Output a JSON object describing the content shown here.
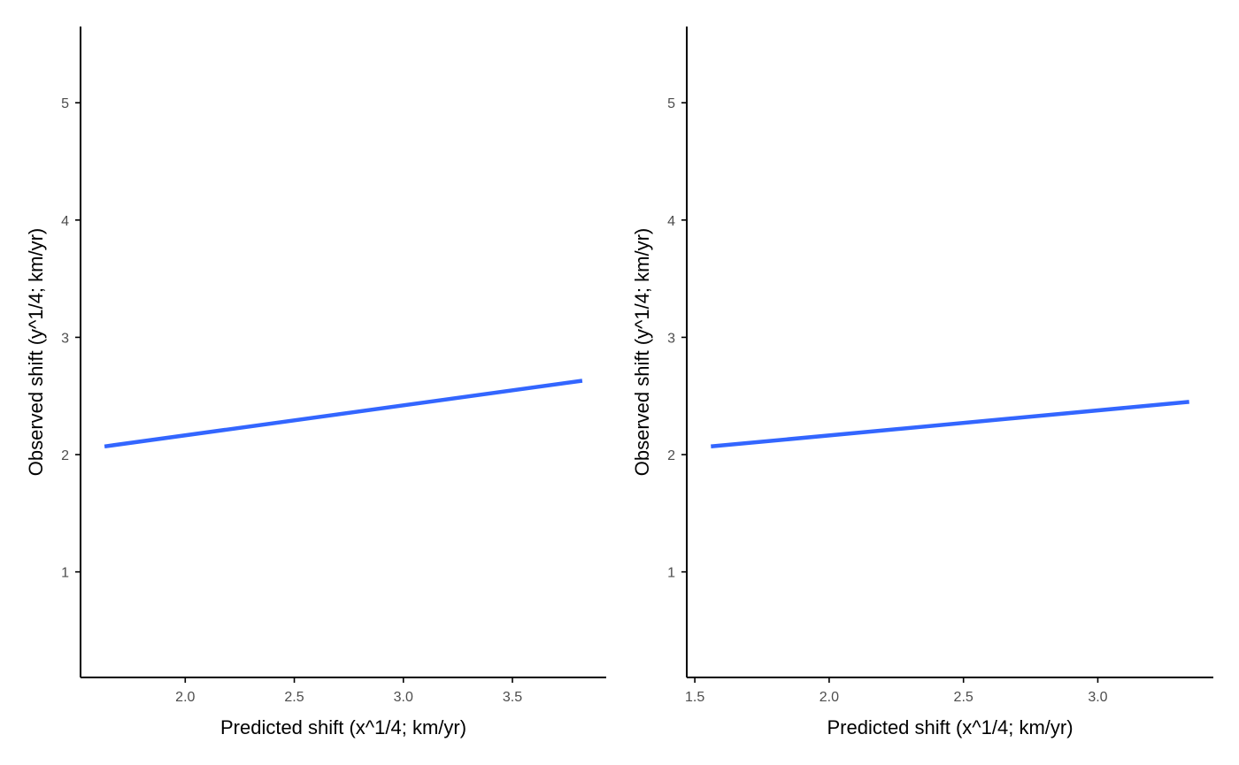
{
  "chart_data": [
    {
      "type": "line",
      "xlabel": "Predicted shift (x^1/4; km/yr)",
      "ylabel": "Observed shift (y^1/4; km/yr)",
      "xlim": [
        1.52,
        3.93
      ],
      "ylim": [
        0.1,
        5.65
      ],
      "x_ticks": [
        2.0,
        2.5,
        3.0,
        3.5
      ],
      "x_tick_labels": [
        "2.0",
        "2.5",
        "3.0",
        "3.5"
      ],
      "y_ticks": [
        1,
        2,
        3,
        4,
        5
      ],
      "y_tick_labels": [
        "1",
        "2",
        "3",
        "4",
        "5"
      ],
      "grid": false,
      "series": [
        {
          "x": [
            1.63,
            3.82
          ],
          "y": [
            2.07,
            2.63
          ],
          "color": "#3366FF"
        }
      ]
    },
    {
      "type": "line",
      "xlabel": "Predicted shift (x^1/4; km/yr)",
      "ylabel": "Observed shift (y^1/4; km/yr)",
      "xlim": [
        1.47,
        3.43
      ],
      "ylim": [
        0.1,
        5.65
      ],
      "x_ticks": [
        1.5,
        2.0,
        2.5,
        3.0
      ],
      "x_tick_labels": [
        "1.5",
        "2.0",
        "2.5",
        "3.0"
      ],
      "y_ticks": [
        1,
        2,
        3,
        4,
        5
      ],
      "y_tick_labels": [
        "1",
        "2",
        "3",
        "4",
        "5"
      ],
      "grid": false,
      "series": [
        {
          "x": [
            1.56,
            3.34
          ],
          "y": [
            2.07,
            2.45
          ],
          "color": "#3366FF"
        }
      ]
    }
  ]
}
